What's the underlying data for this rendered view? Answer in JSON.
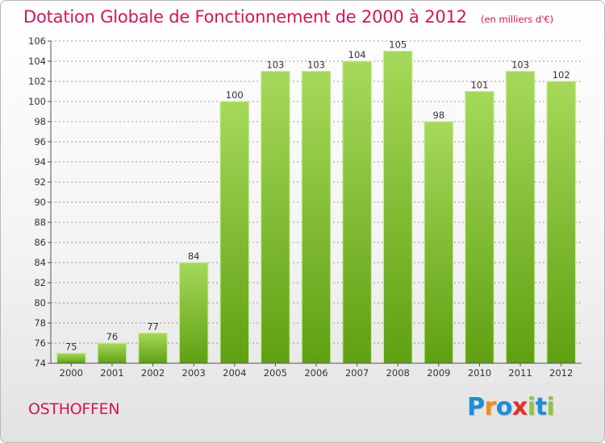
{
  "header": {
    "title": "Dotation Globale de Fonctionnement de 2000 à 2012",
    "subtitle": "(en milliers d'€)"
  },
  "footer": {
    "commune": "OSTHOFFEN",
    "logo_letters": [
      {
        "char": "P",
        "color": "#1a8fd6"
      },
      {
        "char": "r",
        "color": "#f08c1e"
      },
      {
        "char": "o",
        "color": "#1a8fd6"
      },
      {
        "char": "x",
        "color": "#e0302e"
      },
      {
        "char": "i",
        "color": "#8cc63f"
      },
      {
        "char": "t",
        "color": "#1a8fd6"
      },
      {
        "char": "i",
        "color": "#8cc63f"
      }
    ]
  },
  "colors": {
    "bar_top": "#a6d95a",
    "bar_bottom": "#5fa012",
    "bar_edge": "#c9ec94",
    "grid": "#7a7a7a",
    "title": "#d4145a"
  },
  "chart_data": {
    "type": "bar",
    "title": "Dotation Globale de Fonctionnement de 2000 à 2012",
    "subtitle": "(en milliers d'€)",
    "categories": [
      "2000",
      "2001",
      "2002",
      "2003",
      "2004",
      "2005",
      "2006",
      "2007",
      "2008",
      "2009",
      "2010",
      "2011",
      "2012"
    ],
    "values": [
      75,
      76,
      77,
      84,
      100,
      103,
      103,
      104,
      105,
      98,
      101,
      103,
      102
    ],
    "ylim": [
      74,
      106
    ],
    "yticks": [
      74,
      76,
      78,
      80,
      82,
      84,
      86,
      88,
      90,
      92,
      94,
      96,
      98,
      100,
      102,
      104,
      106
    ],
    "grid": "horizontal dashed",
    "xlabel": "",
    "ylabel": ""
  }
}
